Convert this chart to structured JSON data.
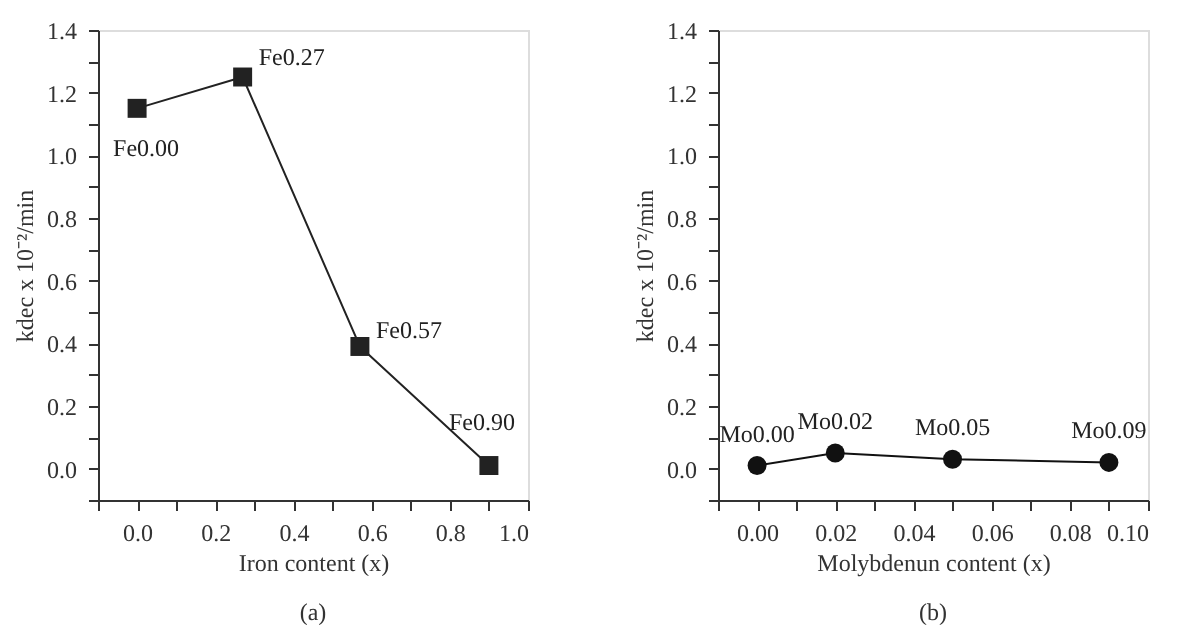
{
  "chart_data": [
    {
      "type": "line",
      "marker": "square",
      "line_style": "solid",
      "grid": false,
      "xlabel": "Iron content (x)",
      "ylabel": "kdec x 10⁻²/min",
      "x": [
        0,
        0.27,
        0.57,
        0.9
      ],
      "series": [
        {
          "color": "#222222",
          "values": [
            1.15,
            1.25,
            0.39,
            0.01
          ]
        }
      ],
      "xlim": [
        -0.1,
        1.0
      ],
      "ylim": [
        -0.1,
        1.4
      ],
      "xticks": [
        {
          "value": -0.1,
          "label": null
        },
        {
          "value": 0,
          "label": "0.0"
        },
        {
          "value": 0.1,
          "label": null
        },
        {
          "value": 0.2,
          "label": "0.2"
        },
        {
          "value": 0.3,
          "label": null
        },
        {
          "value": 0.4,
          "label": "0.4"
        },
        {
          "value": 0.5,
          "label": null
        },
        {
          "value": 0.6,
          "label": "0.6"
        },
        {
          "value": 0.7,
          "label": null
        },
        {
          "value": 0.8,
          "label": "0.8"
        },
        {
          "value": 0.9,
          "label": null
        },
        {
          "value": 1.0,
          "label": "1.0"
        }
      ],
      "yticks": [
        {
          "value": -0.1,
          "label": null
        },
        {
          "value": 0,
          "label": "0.0"
        },
        {
          "value": 0.1,
          "label": null
        },
        {
          "value": 0.2,
          "label": "0.2"
        },
        {
          "value": 0.3,
          "label": null
        },
        {
          "value": 0.4,
          "label": "0.4"
        },
        {
          "value": 0.5,
          "label": null
        },
        {
          "value": 0.6,
          "label": "0.6"
        },
        {
          "value": 0.7,
          "label": null
        },
        {
          "value": 0.8,
          "label": "0.8"
        },
        {
          "value": 0.9,
          "label": null
        },
        {
          "value": 1.0,
          "label": "1.0"
        },
        {
          "value": 1.1,
          "label": null
        },
        {
          "value": 1.2,
          "label": "1.2"
        },
        {
          "value": 1.3,
          "label": null
        },
        {
          "value": 1.4,
          "label": "1.4"
        }
      ],
      "annotations": [
        {
          "text": "Fe0.00",
          "x": 0,
          "y": 1.15
        },
        {
          "text": "Fe0.27",
          "x": 0.27,
          "y": 1.25
        },
        {
          "text": "Fe0.57",
          "x": 0.57,
          "y": 0.39
        },
        {
          "text": "Fe0.90",
          "x": 0.9,
          "y": 0.01
        },
        "(a)"
      ]
    },
    {
      "type": "line",
      "marker": "circle",
      "line_style": "solid",
      "grid": false,
      "xlabel": "Molybdenun content (x)",
      "ylabel": "kdec x 10⁻²/min",
      "x": [
        0,
        0.02,
        0.05,
        0.09
      ],
      "series": [
        {
          "color": "#111111",
          "values": [
            0.01,
            0.05,
            0.03,
            0.02
          ]
        }
      ],
      "xlim": [
        -0.01,
        0.1
      ],
      "ylim": [
        -0.1,
        1.4
      ],
      "xticks": [
        {
          "value": -0.01,
          "label": null
        },
        {
          "value": 0,
          "label": "0.00"
        },
        {
          "value": 0.01,
          "label": null
        },
        {
          "value": 0.02,
          "label": "0.02"
        },
        {
          "value": 0.03,
          "label": null
        },
        {
          "value": 0.04,
          "label": "0.04"
        },
        {
          "value": 0.05,
          "label": null
        },
        {
          "value": 0.06,
          "label": "0.06"
        },
        {
          "value": 0.07,
          "label": null
        },
        {
          "value": 0.08,
          "label": "0.08"
        },
        {
          "value": 0.09,
          "label": null
        },
        {
          "value": 0.1,
          "label": "0.10"
        }
      ],
      "yticks": [
        {
          "value": -0.1,
          "label": null
        },
        {
          "value": 0,
          "label": "0.0"
        },
        {
          "value": 0.1,
          "label": null
        },
        {
          "value": 0.2,
          "label": "0.2"
        },
        {
          "value": 0.3,
          "label": null
        },
        {
          "value": 0.4,
          "label": "0.4"
        },
        {
          "value": 0.5,
          "label": null
        },
        {
          "value": 0.6,
          "label": "0.6"
        },
        {
          "value": 0.7,
          "label": null
        },
        {
          "value": 0.8,
          "label": "0.8"
        },
        {
          "value": 0.9,
          "label": null
        },
        {
          "value": 1.0,
          "label": "1.0"
        },
        {
          "value": 1.1,
          "label": null
        },
        {
          "value": 1.2,
          "label": "1.2"
        },
        {
          "value": 1.3,
          "label": null
        },
        {
          "value": 1.4,
          "label": "1.4"
        }
      ],
      "annotations": [
        {
          "text": "Mo0.00",
          "x": 0,
          "y": 0.01
        },
        {
          "text": "Mo0.02",
          "x": 0.02,
          "y": 0.05
        },
        {
          "text": "Mo0.05",
          "x": 0.05,
          "y": 0.03
        },
        {
          "text": "Mo0.09",
          "x": 0.09,
          "y": 0.02
        },
        "(b)"
      ]
    }
  ]
}
